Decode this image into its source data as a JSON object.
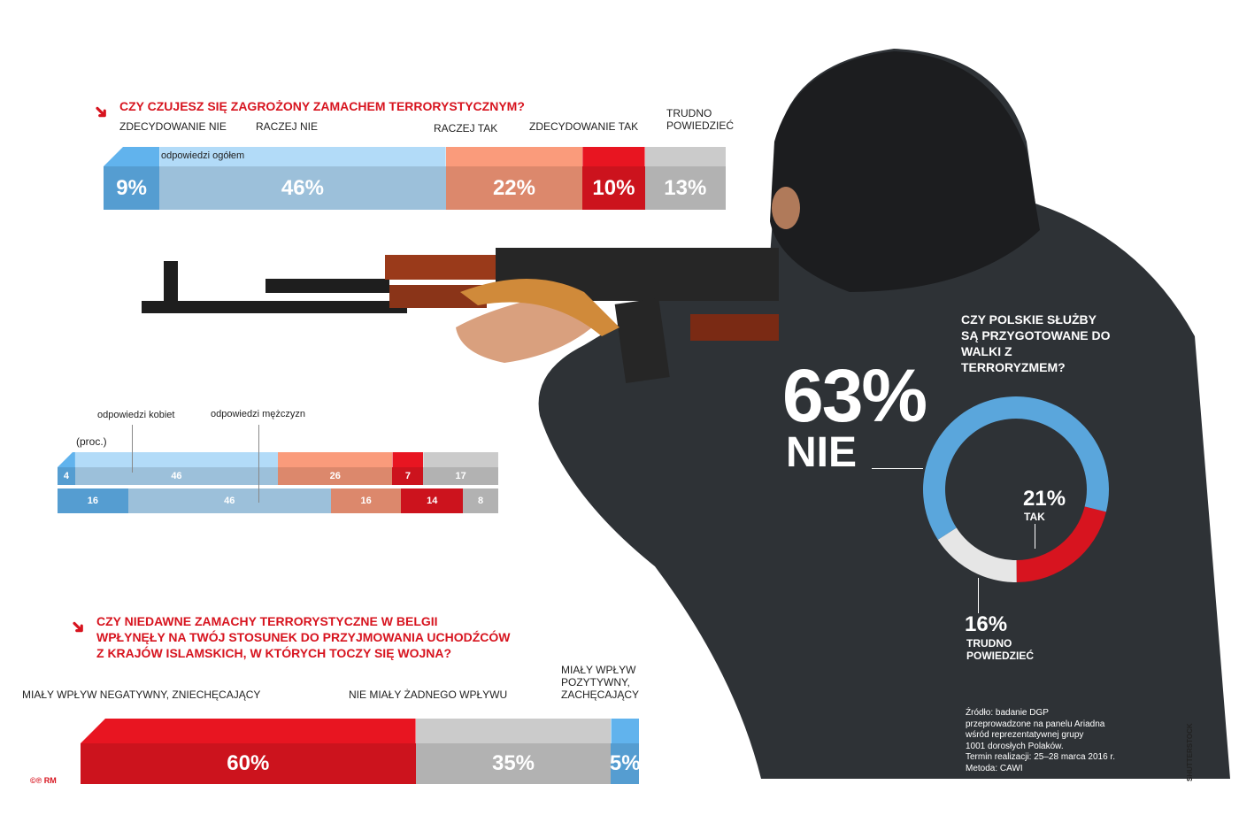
{
  "colors": {
    "blue_dark": "#5aa6dc",
    "blue_light": "#a5cbe6",
    "salmon": "#e89072",
    "red": "#d7141f",
    "gray": "#bcbcbc",
    "jacket": "#2e3236"
  },
  "q1": {
    "title": "CZY CZUJESZ SIĘ ZAGROŻONY ZAMACHEM TERRORYSTYCZNYM?",
    "labels": [
      "ZDECYDOWANIE NIE",
      "RACZEJ NIE",
      "RACZEJ TAK",
      "ZDECYDOWANIE TAK",
      "TRUDNO POWIEDZIEĆ"
    ],
    "overall_label": "odpowiedzi ogółem",
    "women_label": "odpowiedzi kobiet",
    "men_label": "odpowiedzi mężczyzn",
    "unit": "(proc.)"
  },
  "q2": {
    "title": "CZY POLSKIE SŁUŻBY SĄ PRZYGOTOWANE DO WALKI Z TERRORYZMEM?",
    "nie_value": "63%",
    "nie_label": "NIE",
    "tak_value": "21%",
    "tak_label": "TAK",
    "tp_value": "16%",
    "tp_label": "TRUDNO POWIEDZIEĆ"
  },
  "q3": {
    "title_lines": [
      "CZY NIEDAWNE ZAMACHY TERRORYSTYCZNE W BELGII",
      "WPŁYNĘŁY NA TWÓJ STOSUNEK DO PRZYJMOWANIA UCHODŹCÓW",
      "Z KRAJÓW ISLAMSKICH, W KTÓRYCH TOCZY SIĘ WOJNA?"
    ],
    "labels": [
      "MIAŁY WPŁYW NEGATYWNY, ZNIECHĘCAJĄCY",
      "NIE MIAŁY ŻADNEGO WPŁYWU",
      "MIAŁY WPŁYW POZYTYWNY, ZACHĘCAJĄCY"
    ]
  },
  "source": [
    "Źródło: badanie DGP",
    "przeprowadzone na panelu Ariadna",
    "wśród reprezentatywnej grupy",
    "1001 dorosłych Polaków.",
    "Termin realizacji: 25–28 marca 2016 r.",
    "Metoda: CAWI"
  ],
  "credit": "SHUTTERSTOCK",
  "logo": "©℗ RM",
  "chart_data": [
    {
      "type": "bar",
      "title": "CZY CZUJESZ SIĘ ZAGROŻONY ZAMACHEM TERRORYSTYCZNYM?",
      "categories": [
        "ZDECYDOWANIE NIE",
        "RACZEJ NIE",
        "RACZEJ TAK",
        "ZDECYDOWANIE TAK",
        "TRUDNO POWIEDZIEĆ"
      ],
      "series": [
        {
          "name": "odpowiedzi ogółem",
          "values": [
            9,
            46,
            22,
            10,
            13
          ],
          "labels": [
            "9%",
            "46%",
            "22%",
            "10%",
            "13%"
          ]
        },
        {
          "name": "odpowiedzi kobiet",
          "values": [
            4,
            46,
            26,
            7,
            17
          ],
          "labels": [
            "4",
            "46",
            "26",
            "7",
            "17"
          ]
        },
        {
          "name": "odpowiedzi mężczyzn",
          "values": [
            16,
            46,
            16,
            14,
            8
          ],
          "labels": [
            "16",
            "46",
            "16",
            "14",
            "8"
          ]
        }
      ],
      "stacked": true,
      "unit": "proc."
    },
    {
      "type": "pie",
      "title": "CZY POLSKIE SŁUŻBY SĄ PRZYGOTOWANE DO WALKI Z TERRORYZMEM?",
      "categories": [
        "NIE",
        "TAK",
        "TRUDNO POWIEDZIEĆ"
      ],
      "values": [
        63,
        21,
        16
      ]
    },
    {
      "type": "bar",
      "stacked": true,
      "title": "CZY NIEDAWNE ZAMACHY TERRORYSTYCZNE W BELGII WPŁYNĘŁY NA TWÓJ STOSUNEK DO PRZYJMOWANIA UCHODŹCÓW Z KRAJÓW ISLAMSKICH, W KTÓRYCH TOCZY SIĘ WOJNA?",
      "categories": [
        "MIAŁY WPŁYW NEGATYWNY, ZNIECHĘCAJĄCY",
        "NIE MIAŁY ŻADNEGO WPŁYWU",
        "MIAŁY WPŁYW POZYTYWNY, ZACHĘCAJĄCY"
      ],
      "values": [
        60,
        35,
        5
      ],
      "labels": [
        "60%",
        "35%",
        "5%"
      ]
    }
  ]
}
